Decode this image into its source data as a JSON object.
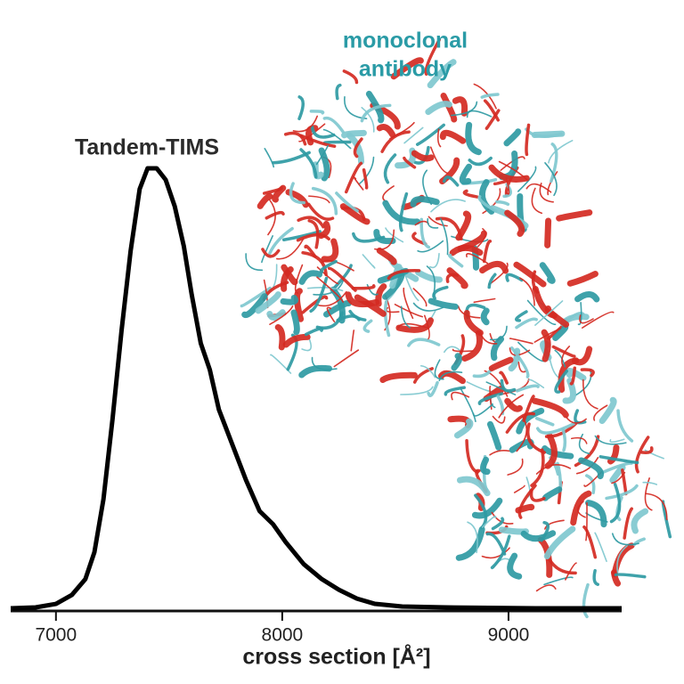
{
  "chart_data": {
    "type": "line",
    "xlabel": "cross section [Å²]",
    "x": [
      6800,
      6910,
      7000,
      7070,
      7130,
      7170,
      7210,
      7250,
      7290,
      7330,
      7370,
      7405,
      7445,
      7485,
      7525,
      7565,
      7600,
      7640,
      7680,
      7720,
      7780,
      7840,
      7900,
      7960,
      8015,
      8095,
      8175,
      8250,
      8330,
      8410,
      8530,
      8725,
      9120,
      9500
    ],
    "series": [
      {
        "name": "Tandem-TIMS",
        "color": "#000000",
        "values": [
          0,
          0.2,
          1,
          3,
          6.6,
          12.7,
          24.7,
          42.8,
          62.9,
          80.9,
          94.9,
          99.6,
          99.6,
          97,
          91,
          82,
          71,
          60,
          54,
          45,
          37,
          29,
          22,
          19,
          15,
          10,
          6.6,
          4.2,
          2.2,
          1,
          0.4,
          0.2,
          0,
          0
        ]
      }
    ],
    "xlim": [
      6800,
      9500
    ],
    "xticks": [
      7000,
      8000,
      9000
    ],
    "ylim": [
      0,
      100
    ],
    "annotation": [
      "monoclonal",
      "antibody"
    ],
    "annotation_color": "#2a9ba6"
  }
}
